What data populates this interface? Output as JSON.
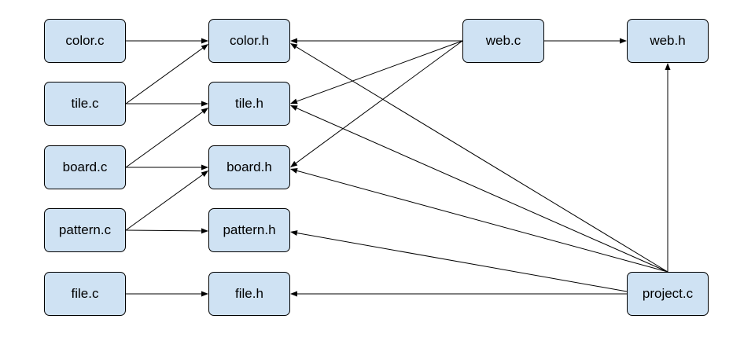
{
  "nodes": {
    "color_c": "color.c",
    "color_h": "color.h",
    "tile_c": "tile.c",
    "tile_h": "tile.h",
    "board_c": "board.c",
    "board_h": "board.h",
    "pattern_c": "pattern.c",
    "pattern_h": "pattern.h",
    "file_c": "file.c",
    "file_h": "file.h",
    "web_c": "web.c",
    "web_h": "web.h",
    "project_c": "project.c"
  },
  "edges": [
    {
      "from": "color_c",
      "to": "color_h"
    },
    {
      "from": "tile_c",
      "to": "color_h"
    },
    {
      "from": "tile_c",
      "to": "tile_h"
    },
    {
      "from": "board_c",
      "to": "tile_h"
    },
    {
      "from": "board_c",
      "to": "board_h"
    },
    {
      "from": "pattern_c",
      "to": "board_h"
    },
    {
      "from": "pattern_c",
      "to": "pattern_h"
    },
    {
      "from": "file_c",
      "to": "file_h"
    },
    {
      "from": "web_c",
      "to": "color_h"
    },
    {
      "from": "web_c",
      "to": "tile_h"
    },
    {
      "from": "web_c",
      "to": "board_h"
    },
    {
      "from": "web_c",
      "to": "web_h"
    },
    {
      "from": "project_c",
      "to": "color_h"
    },
    {
      "from": "project_c",
      "to": "tile_h"
    },
    {
      "from": "project_c",
      "to": "board_h"
    },
    {
      "from": "project_c",
      "to": "pattern_h"
    },
    {
      "from": "project_c",
      "to": "file_h"
    },
    {
      "from": "project_c",
      "to": "web_h"
    }
  ]
}
